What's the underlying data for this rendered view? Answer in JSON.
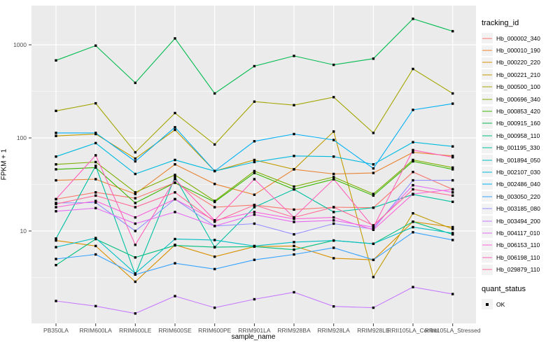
{
  "figure": {
    "background": "#FFFFFF",
    "panel_bg": "#EBEBEB",
    "grid_color": "#FFFFFF",
    "tick_color": "#333333",
    "tick_label_color": "#4D4D4D",
    "point_color": "#000000"
  },
  "axes": {
    "x_title": "sample_name",
    "y_title": "FPKM + 1",
    "y_tick_labels": [
      "10",
      "100",
      "1000"
    ]
  },
  "legend": {
    "tracking_title": "tracking_id",
    "quant_title": "quant_status",
    "quant_items": [
      {
        "label": "OK"
      }
    ]
  },
  "chart_data": {
    "type": "line",
    "log_y": true,
    "title": "",
    "xlabel": "sample_name",
    "ylabel": "FPKM + 1",
    "ylim": [
      1,
      2300
    ],
    "yticks": [
      10,
      100,
      1000
    ],
    "yticks_minor": [
      3.1623,
      31.623,
      316.23
    ],
    "grid": true,
    "legend_position": "right",
    "categories": [
      "PB350LA",
      "RRIM600LA",
      "RRIM600LE",
      "RRIM600SE",
      "RRIM600PE",
      "RRIM901LA",
      "RRIM928BA",
      "RRIM928LA",
      "RRIM928LE",
      "RRII105LA_Control",
      "RRII105LA_Stressed"
    ],
    "series": [
      {
        "name": "Hb_000002_340",
        "color": "#F8766D",
        "values": [
          22,
          26,
          22.5,
          33,
          18,
          19,
          17,
          18,
          17.8,
          43,
          28
        ]
      },
      {
        "name": "Hb_000010_190",
        "color": "#EA8331",
        "values": [
          35,
          36,
          25,
          52,
          32,
          24.5,
          46,
          41,
          42,
          70,
          64
        ]
      },
      {
        "name": "Hb_000220_220",
        "color": "#D89000",
        "values": [
          7.9,
          6.9,
          2.85,
          7.1,
          5.3,
          6.8,
          6.9,
          5.1,
          4.9,
          12.6,
          11
        ]
      },
      {
        "name": "Hb_000221_210",
        "color": "#C09B00",
        "values": [
          105,
          110,
          60,
          122,
          44,
          58,
          46,
          117,
          3.2,
          15.5,
          10.5
        ]
      },
      {
        "name": "Hb_000500_100",
        "color": "#A3A500",
        "values": [
          195,
          235,
          70,
          185,
          85,
          245,
          225,
          274,
          113,
          550,
          300
        ]
      },
      {
        "name": "Hb_000696_340",
        "color": "#7CAE00",
        "values": [
          52,
          55,
          26,
          40,
          21,
          44,
          30,
          38,
          25,
          58,
          48
        ]
      },
      {
        "name": "Hb_000853_420",
        "color": "#39B600",
        "values": [
          46,
          48,
          20,
          33,
          20.5,
          42,
          28,
          36,
          24,
          56,
          46
        ]
      },
      {
        "name": "Hb_000915_160",
        "color": "#00BB4E",
        "values": [
          680,
          980,
          390,
          1170,
          300,
          590,
          760,
          610,
          710,
          1900,
          1400
        ]
      },
      {
        "name": "Hb_000958_110",
        "color": "#00BF7D",
        "values": [
          4.3,
          8.2,
          5.2,
          7.0,
          6.7,
          6.8,
          6.3,
          7.9,
          7.3,
          12.6,
          9.2
        ]
      },
      {
        "name": "Hb_001195_330",
        "color": "#00C1A3",
        "values": [
          8.3,
          50,
          3.4,
          38,
          6.7,
          18,
          28,
          16,
          17.8,
          24.7,
          20.6
        ]
      },
      {
        "name": "Hb_001894_050",
        "color": "#00BFC4",
        "values": [
          6.7,
          8.4,
          3.5,
          8.2,
          8.0,
          6.9,
          7.6,
          7.9,
          7.3,
          11,
          9.5
        ]
      },
      {
        "name": "Hb_002107_030",
        "color": "#00BAE0",
        "values": [
          63,
          88,
          41,
          58,
          44,
          55,
          64,
          63,
          52,
          90,
          81
        ]
      },
      {
        "name": "Hb_002486_040",
        "color": "#00B0F6",
        "values": [
          113,
          113,
          56,
          130,
          44,
          92,
          110,
          95,
          47,
          200,
          233
        ]
      },
      {
        "name": "Hb_003050_220",
        "color": "#35A2FF",
        "values": [
          5.0,
          5.6,
          3.4,
          4.5,
          3.9,
          4.9,
          5.6,
          6.6,
          4.9,
          9.7,
          8.0
        ]
      },
      {
        "name": "Hb_003185_080",
        "color": "#9590FF",
        "values": [
          20,
          20.2,
          10,
          22,
          11.3,
          12,
          9.2,
          12,
          10.5,
          35,
          35
        ]
      },
      {
        "name": "Hb_003494_200",
        "color": "#C77CFF",
        "values": [
          1.77,
          1.56,
          1.3,
          2.0,
          1.5,
          1.85,
          2.2,
          1.55,
          1.5,
          2.5,
          2.1
        ]
      },
      {
        "name": "Hb_004117_010",
        "color": "#E76BF3",
        "values": [
          16.3,
          17.6,
          12,
          16,
          11.3,
          15,
          12.5,
          13,
          11,
          31,
          26
        ]
      },
      {
        "name": "Hb_006153_110",
        "color": "#FA62DB",
        "values": [
          18,
          21,
          14,
          22,
          13,
          16,
          13.5,
          14,
          10.3,
          25,
          28
        ]
      },
      {
        "name": "Hb_006198_110",
        "color": "#FF62BC",
        "values": [
          22,
          65,
          7.1,
          36,
          13,
          36,
          14,
          36,
          11,
          74,
          62
        ]
      },
      {
        "name": "Hb_029879_110",
        "color": "#FF6A98",
        "values": [
          19.5,
          24,
          18,
          26,
          12.6,
          19,
          14,
          18,
          11.5,
          28,
          24
        ]
      }
    ]
  }
}
